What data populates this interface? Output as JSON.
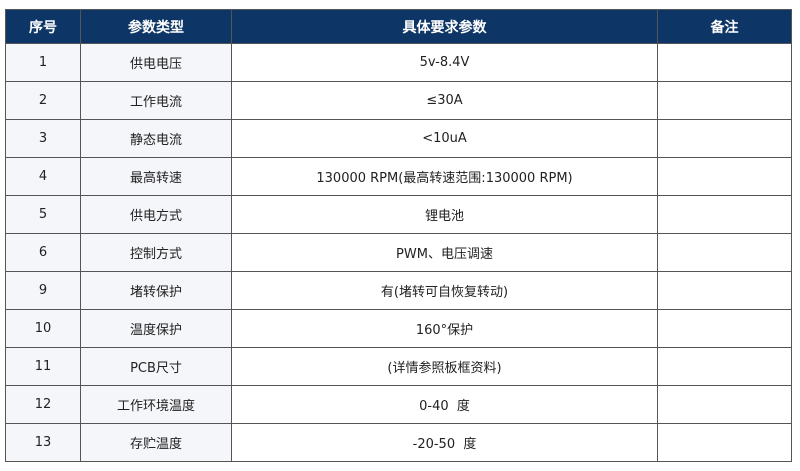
{
  "colors": {
    "header_bg": "#0d3666"
  },
  "headers": [
    "序号",
    "参数类型",
    "具体要求参数",
    "备注"
  ],
  "rows": [
    [
      "1",
      "供电电压",
      "5v-8.4V",
      ""
    ],
    [
      "2",
      "工作电流",
      "≤30A",
      ""
    ],
    [
      "3",
      "静态电流",
      "<10uA",
      ""
    ],
    [
      "4",
      "最高转速",
      "130000 RPM(最高转速范围:130000 RPM)",
      ""
    ],
    [
      "5",
      "供电方式",
      "锂电池",
      ""
    ],
    [
      "6",
      "控制方式",
      "PWM、电压调速",
      ""
    ],
    [
      "9",
      "堵转保护",
      "有(堵转可自恢复转动)",
      ""
    ],
    [
      "10",
      "温度保护",
      "160°保护",
      ""
    ],
    [
      "11",
      "PCB尺寸",
      "(详情参照板框资料)",
      ""
    ],
    [
      "12",
      "工作环境温度",
      "0-40  度",
      ""
    ],
    [
      "13",
      "存贮温度",
      "-20-50  度",
      ""
    ]
  ]
}
